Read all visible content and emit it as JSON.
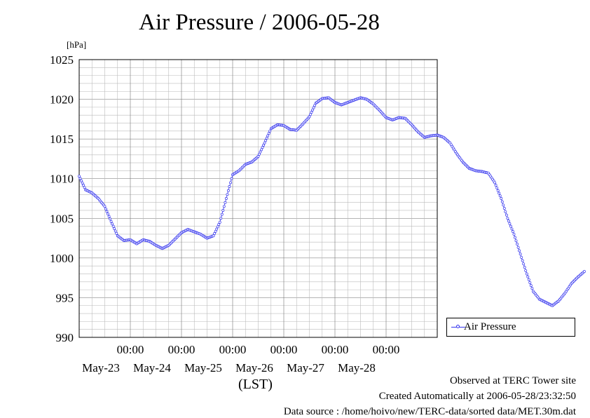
{
  "chart_data": {
    "type": "line",
    "title": "Air Pressure / 2006-05-28",
    "ylabel": "[hPa]",
    "xlabel": "(LST)",
    "ylim": [
      990,
      1025
    ],
    "yticks": [
      990,
      995,
      1000,
      1005,
      1010,
      1015,
      1020,
      1025
    ],
    "x_range_days": [
      "2006-05-22T00:00",
      "2006-05-29T00:00"
    ],
    "x_ticks": [
      {
        "time": "00:00",
        "date": "May-23"
      },
      {
        "time": "00:00",
        "date": "May-24"
      },
      {
        "time": "00:00",
        "date": "May-25"
      },
      {
        "time": "00:00",
        "date": "May-26"
      },
      {
        "time": "00:00",
        "date": "May-27"
      },
      {
        "time": "00:00",
        "date": "May-28"
      }
    ],
    "grid": true,
    "legend_position": "right",
    "series": [
      {
        "name": "Air Pressure",
        "color": "#3333ee",
        "marker": "open-circle",
        "points": [
          [
            "05-22 00:00",
            1010.3
          ],
          [
            "05-22 03:00",
            1008.6
          ],
          [
            "05-22 06:00",
            1008.2
          ],
          [
            "05-22 09:00",
            1007.5
          ],
          [
            "05-22 12:00",
            1006.5
          ],
          [
            "05-22 15:00",
            1004.6
          ],
          [
            "05-22 18:00",
            1002.8
          ],
          [
            "05-22 21:00",
            1002.2
          ],
          [
            "05-23 00:00",
            1002.3
          ],
          [
            "05-23 03:00",
            1001.8
          ],
          [
            "05-23 06:00",
            1002.3
          ],
          [
            "05-23 09:00",
            1002.1
          ],
          [
            "05-23 12:00",
            1001.6
          ],
          [
            "05-23 15:00",
            1001.2
          ],
          [
            "05-23 18:00",
            1001.6
          ],
          [
            "05-23 21:00",
            1002.4
          ],
          [
            "05-24 00:00",
            1003.2
          ],
          [
            "05-24 03:00",
            1003.6
          ],
          [
            "05-24 06:00",
            1003.3
          ],
          [
            "05-24 09:00",
            1003.0
          ],
          [
            "05-24 12:00",
            1002.5
          ],
          [
            "05-24 15:00",
            1002.8
          ],
          [
            "05-24 18:00",
            1004.5
          ],
          [
            "05-24 21:00",
            1007.5
          ],
          [
            "05-25 00:00",
            1010.5
          ],
          [
            "05-25 03:00",
            1011.0
          ],
          [
            "05-25 06:00",
            1011.8
          ],
          [
            "05-25 09:00",
            1012.1
          ],
          [
            "05-25 12:00",
            1012.8
          ],
          [
            "05-25 15:00",
            1014.5
          ],
          [
            "05-25 18:00",
            1016.3
          ],
          [
            "05-25 21:00",
            1016.8
          ],
          [
            "05-26 00:00",
            1016.7
          ],
          [
            "05-26 03:00",
            1016.2
          ],
          [
            "05-26 06:00",
            1016.1
          ],
          [
            "05-26 09:00",
            1016.9
          ],
          [
            "05-26 12:00",
            1017.8
          ],
          [
            "05-26 15:00",
            1019.5
          ],
          [
            "05-26 18:00",
            1020.1
          ],
          [
            "05-26 21:00",
            1020.2
          ],
          [
            "05-27 00:00",
            1019.6
          ],
          [
            "05-27 03:00",
            1019.3
          ],
          [
            "05-27 06:00",
            1019.6
          ],
          [
            "05-27 09:00",
            1019.9
          ],
          [
            "05-27 12:00",
            1020.2
          ],
          [
            "05-27 15:00",
            1020.0
          ],
          [
            "05-27 18:00",
            1019.4
          ],
          [
            "05-27 21:00",
            1018.6
          ],
          [
            "05-28 00:00",
            1017.7
          ],
          [
            "05-28 03:00",
            1017.4
          ],
          [
            "05-28 06:00",
            1017.7
          ],
          [
            "05-28 09:00",
            1017.6
          ],
          [
            "05-28 12:00",
            1016.8
          ],
          [
            "05-28 15:00",
            1015.9
          ],
          [
            "05-28 18:00",
            1015.2
          ],
          [
            "05-28 21:00",
            1015.4
          ],
          [
            "05-29 00:00",
            1015.5
          ],
          [
            "05-29 03:00",
            1015.2
          ],
          [
            "05-29 06:00",
            1014.5
          ],
          [
            "05-29 09:00",
            1013.2
          ],
          [
            "05-29 12:00",
            1012.1
          ],
          [
            "05-29 15:00",
            1011.3
          ],
          [
            "05-29 18:00",
            1011.0
          ],
          [
            "05-29 21:00",
            1010.9
          ],
          [
            "05-30 00:00",
            1010.7
          ],
          [
            "05-30 03:00",
            1009.5
          ],
          [
            "05-30 06:00",
            1007.5
          ],
          [
            "05-30 09:00",
            1005.0
          ],
          [
            "05-30 12:00",
            1003.0
          ],
          [
            "05-30 15:00",
            1000.5
          ],
          [
            "05-30 18:00",
            998.0
          ],
          [
            "05-30 21:00",
            995.8
          ],
          [
            "05-31 00:00",
            994.8
          ],
          [
            "05-31 03:00",
            994.4
          ],
          [
            "05-31 06:00",
            994.0
          ],
          [
            "05-31 09:00",
            994.6
          ],
          [
            "05-31 12:00",
            995.6
          ],
          [
            "05-31 15:00",
            996.8
          ],
          [
            "05-31 18:00",
            997.6
          ],
          [
            "05-31 21:00",
            998.3
          ]
        ]
      }
    ]
  },
  "footer": {
    "observed": "Observed at TERC Tower site",
    "created": "Created Automatically at 2006-05-28/23:32:50",
    "source": "Data source : /home/hoivo/new/TERC-data/sorted  data/MET.30m.dat"
  }
}
